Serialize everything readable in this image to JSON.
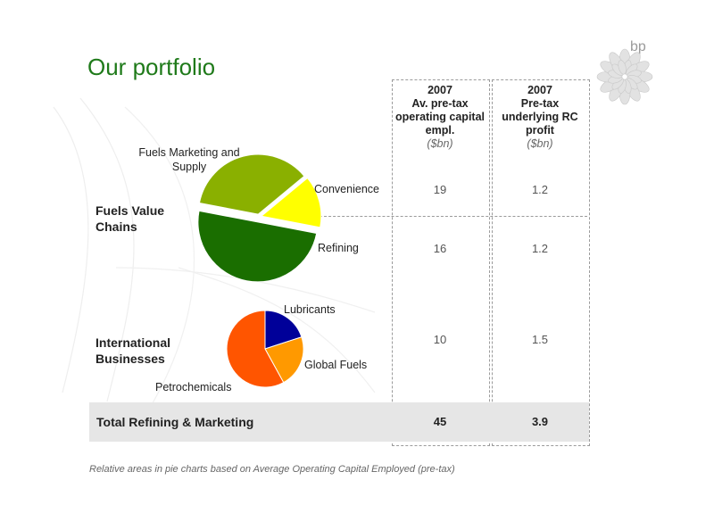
{
  "title": "Our portfolio",
  "brand": "bp",
  "columns": [
    {
      "year": "2007",
      "title": "Av. pre-tax operating capital empl.",
      "unit": "($bn)"
    },
    {
      "year": "2007",
      "title": "Pre-tax underlying RC profit",
      "unit": "($bn)"
    }
  ],
  "sections": {
    "fvc": "Fuels Value Chains",
    "ib": "International Businesses"
  },
  "rows": [
    {
      "label": "Convenience",
      "capital": "19",
      "profit": "1.2"
    },
    {
      "label": "Refining",
      "capital": "16",
      "profit": "1.2"
    },
    {
      "label": "",
      "capital": "10",
      "profit": "1.5"
    }
  ],
  "total": {
    "label": "Total Refining & Marketing",
    "capital": "45",
    "profit": "3.9"
  },
  "footnote": "Relative areas in pie charts based on Average Operating Capital Employed (pre-tax)",
  "colors": {
    "green_title": "#1f7a1a",
    "light_green": "#8ab000",
    "dark_green": "#1a6e00",
    "yellow": "#ffff00",
    "blue": "#000099",
    "orange": "#ff9900",
    "red_orange": "#ff5500"
  },
  "chart_data": [
    {
      "type": "pie",
      "title": "",
      "slices": [
        {
          "label": "Fuels Marketing and Supply",
          "value": 36,
          "color": "#8ab000"
        },
        {
          "label": "Convenience",
          "value": 14,
          "color": "#ffff00"
        },
        {
          "label": "Refining",
          "value": 50,
          "color": "#1a6e00"
        }
      ]
    },
    {
      "type": "pie",
      "title": "",
      "slices": [
        {
          "label": "Lubricants",
          "value": 20,
          "color": "#000099"
        },
        {
          "label": "Global Fuels",
          "value": 22,
          "color": "#ff9900"
        },
        {
          "label": "Petrochemicals",
          "value": 58,
          "color": "#ff5500"
        }
      ]
    }
  ]
}
